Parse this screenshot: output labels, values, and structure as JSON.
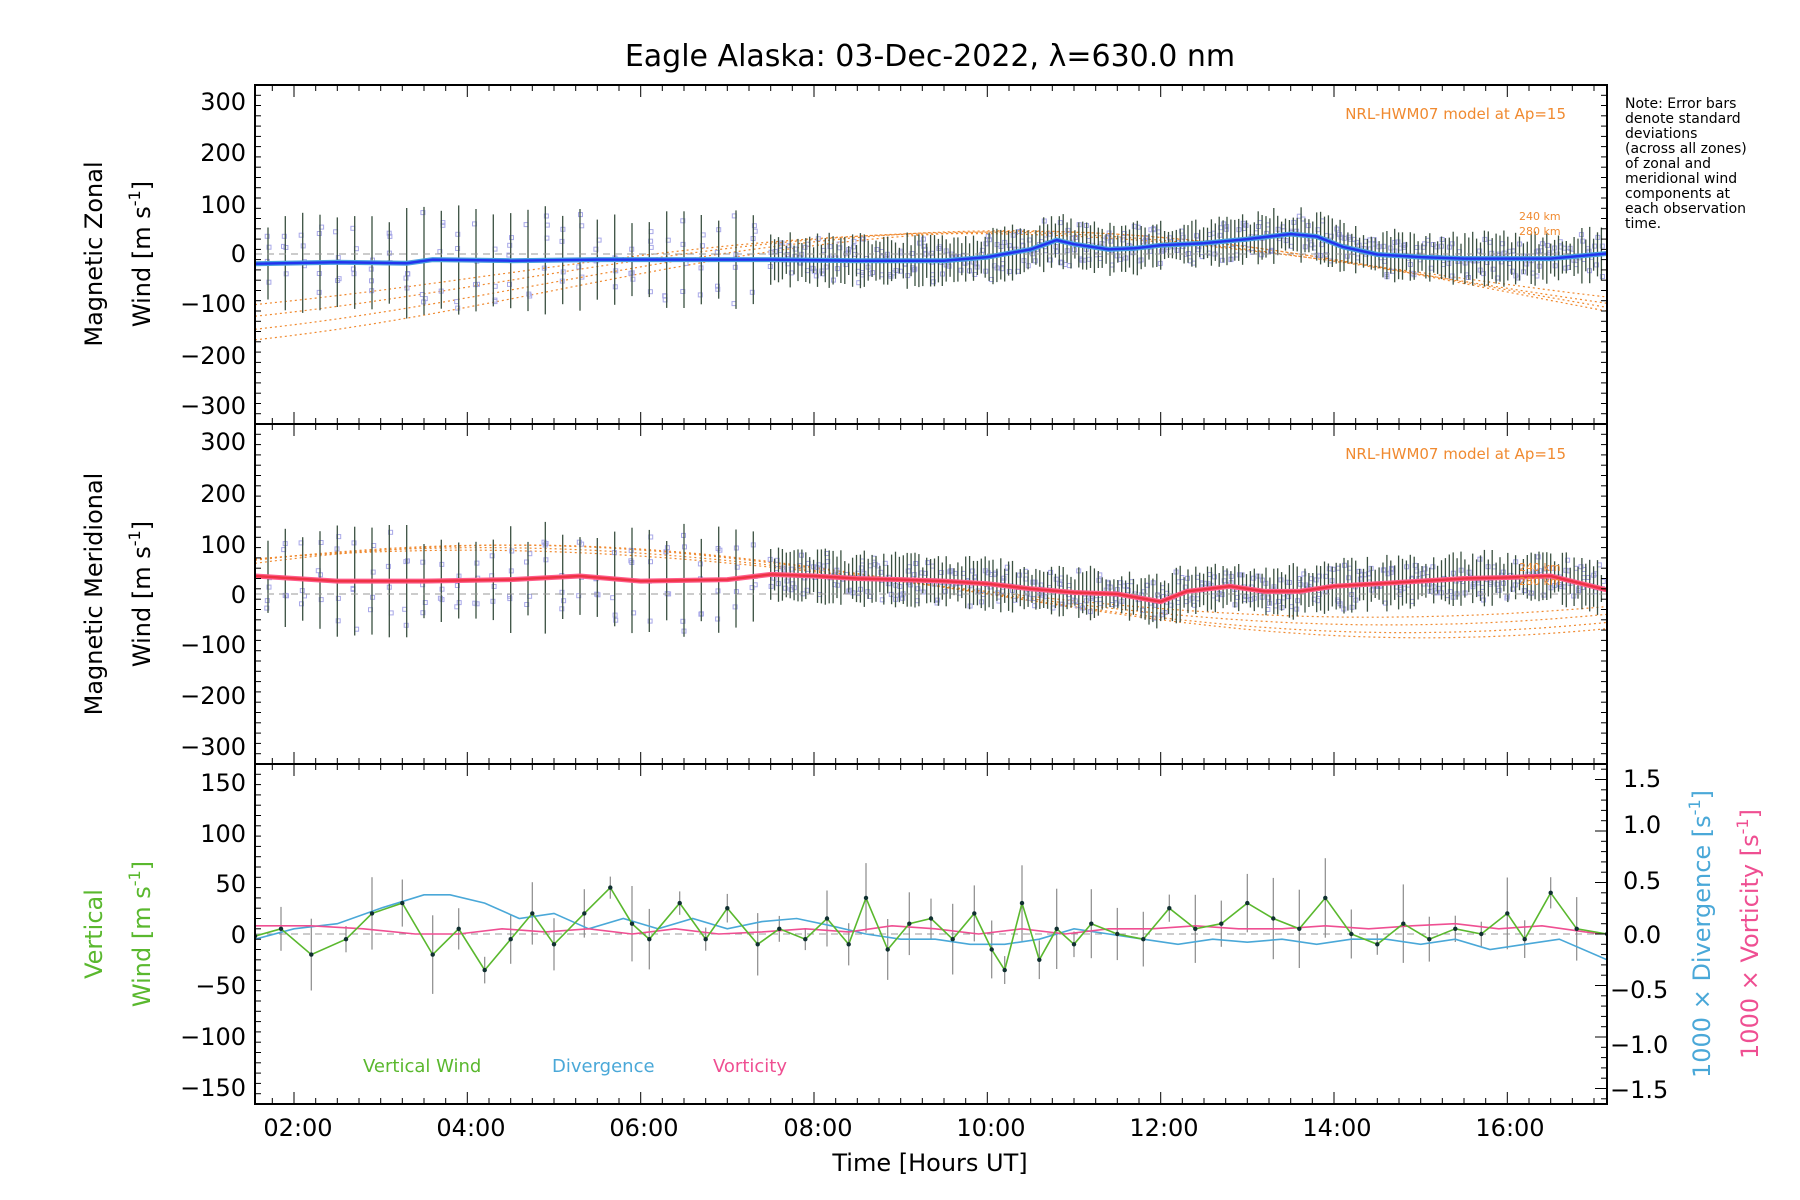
{
  "title": "Eagle Alaska: 03-Dec-2022, λ=630.0 nm",
  "note_lines": [
    "Note: Error bars",
    "denote standard",
    "deviations",
    "(across all zones)",
    "of zonal and",
    "meridional wind",
    "components at",
    "each observation",
    "time."
  ],
  "xlabel": "Time [Hours UT]",
  "x_ticks": [
    "02:00",
    "04:00",
    "06:00",
    "08:00",
    "10:00",
    "12:00",
    "14:00",
    "16:00"
  ],
  "panels": {
    "zonal": {
      "ylabel_line1": "Magnetic Zonal",
      "ylabel_line2": "Wind [m s",
      "ylabel_sup": "-1",
      "ylabel_close": "]",
      "model_label": "NRL-HWM07 model at Ap=15",
      "alt_label_a": "240 km",
      "alt_label_b": "280 km",
      "y_ticks": [
        "300",
        "200",
        "100",
        "0",
        "−100",
        "−200",
        "−300"
      ]
    },
    "meridional": {
      "ylabel_line1": "Magnetic Meridional",
      "ylabel_line2": "Wind [m s",
      "ylabel_sup": "-1",
      "ylabel_close": "]",
      "model_label": "NRL-HWM07 model at Ap=15",
      "alt_label_a": "240 km",
      "alt_label_b": "280 km",
      "y_ticks": [
        "300",
        "200",
        "100",
        "0",
        "−100",
        "−200",
        "−300"
      ]
    },
    "vertical": {
      "ylabel_line1": "Vertical",
      "ylabel_line2": "Wind [m s",
      "ylabel_sup": "-1",
      "ylabel_close": "]",
      "y_ticks": [
        "150",
        "100",
        "50",
        "0",
        "−50",
        "−100",
        "−150"
      ],
      "right_ticks": [
        "1.5",
        "1.0",
        "0.5",
        "0.0",
        "−0.5",
        "−1.0",
        "−1.5"
      ],
      "right_label_div": "1000 × Divergence [s",
      "right_label_vor": "1000 × Vorticity [s",
      "right_label_sup": "-1",
      "right_label_close": "]",
      "legend": [
        "Vertical Wind",
        "Divergence",
        "Vorticity"
      ]
    }
  },
  "colors": {
    "zonal_line": "#2233ee",
    "zonal_smooth": "#4aa0e0",
    "meridional_line": "#ee3344",
    "meridional_smooth": "#ff5c8a",
    "model": "#f08a30",
    "scatter": "#a8a8e8",
    "error_bar": "#3a5040",
    "vertical": "#5ab82e",
    "divergence": "#4aa8d8",
    "vorticity": "#ef4f92",
    "grey_err": "#8a8a8a"
  },
  "chart_data": [
    {
      "type": "line",
      "panel": "zonal",
      "xlim": [
        1.55,
        17.15
      ],
      "ylim": [
        -330,
        330
      ],
      "x_unit": "hours UT",
      "series": [
        {
          "x": [
            1.55,
            2.5,
            3.3,
            3.6,
            4.5,
            5.5,
            6.5,
            7.5,
            8.5,
            9.5,
            10.0,
            10.5,
            10.8,
            11.0,
            11.4,
            11.7,
            12.0,
            12.5,
            13.0,
            13.5,
            13.8,
            14.1,
            14.5,
            15.0,
            15.5,
            16.0,
            16.5,
            17.15
          ],
          "values": [
            -18,
            -15,
            -17,
            -10,
            -12,
            -10,
            -10,
            -10,
            -12,
            -12,
            -5,
            10,
            28,
            20,
            10,
            12,
            18,
            22,
            30,
            40,
            35,
            15,
            0,
            -5,
            -8,
            -8,
            -8,
            2
          ]
        }
      ]
    },
    {
      "type": "line",
      "panel": "meridional",
      "xlim": [
        1.55,
        17.15
      ],
      "ylim": [
        -330,
        330
      ],
      "x_unit": "hours UT",
      "series": [
        {
          "x": [
            1.55,
            2.5,
            3.5,
            4.5,
            5.3,
            6.0,
            7.0,
            7.5,
            8.0,
            8.5,
            9.0,
            9.5,
            10.0,
            10.5,
            11.0,
            11.5,
            12.0,
            12.3,
            12.8,
            13.2,
            13.6,
            14.0,
            14.5,
            15.0,
            15.5,
            16.0,
            16.5,
            17.15
          ],
          "values": [
            35,
            25,
            25,
            28,
            35,
            25,
            28,
            38,
            35,
            30,
            28,
            25,
            20,
            10,
            3,
            0,
            -15,
            5,
            15,
            5,
            5,
            15,
            20,
            25,
            30,
            32,
            35,
            8
          ]
        }
      ]
    },
    {
      "type": "line",
      "panel": "vertical",
      "xlim": [
        1.55,
        17.15
      ],
      "ylim": [
        -165,
        165
      ],
      "right_ylim": [
        -1.65,
        1.65
      ],
      "series": [
        {
          "name": "Vertical Wind",
          "x": [
            1.55,
            1.85,
            2.2,
            2.6,
            2.9,
            3.25,
            3.6,
            3.9,
            4.2,
            4.5,
            4.75,
            5.0,
            5.35,
            5.65,
            5.9,
            6.1,
            6.45,
            6.75,
            7.0,
            7.35,
            7.6,
            7.9,
            8.15,
            8.4,
            8.6,
            8.85,
            9.1,
            9.35,
            9.6,
            9.85,
            10.05,
            10.2,
            10.4,
            10.6,
            10.8,
            11.0,
            11.2,
            11.5,
            11.8,
            12.1,
            12.4,
            12.7,
            13.0,
            13.3,
            13.6,
            13.9,
            14.2,
            14.5,
            14.8,
            15.1,
            15.4,
            15.7,
            16.0,
            16.2,
            16.5,
            16.8,
            17.15
          ],
          "values": [
            -2,
            5,
            -20,
            -5,
            20,
            30,
            -20,
            5,
            -35,
            -5,
            20,
            -10,
            20,
            45,
            10,
            -5,
            30,
            -5,
            25,
            -10,
            5,
            -5,
            15,
            -10,
            35,
            -15,
            10,
            15,
            -5,
            20,
            -15,
            -35,
            30,
            -25,
            5,
            -10,
            10,
            0,
            -5,
            25,
            5,
            10,
            30,
            15,
            5,
            35,
            0,
            -10,
            10,
            -5,
            5,
            0,
            20,
            -5,
            40,
            5,
            0
          ]
        },
        {
          "name": "Divergence",
          "x": [
            1.55,
            2.0,
            2.5,
            3.0,
            3.5,
            3.8,
            4.2,
            4.6,
            5.0,
            5.4,
            5.8,
            6.2,
            6.6,
            7.0,
            7.4,
            7.8,
            8.2,
            8.6,
            9.0,
            9.4,
            9.8,
            10.2,
            10.6,
            11.0,
            11.4,
            11.8,
            12.2,
            12.6,
            13.0,
            13.4,
            13.8,
            14.2,
            14.6,
            15.0,
            15.4,
            15.8,
            16.2,
            16.6,
            17.15
          ],
          "values": [
            -0.05,
            0.05,
            0.1,
            0.25,
            0.38,
            0.38,
            0.3,
            0.15,
            0.2,
            0.05,
            0.15,
            0.05,
            0.15,
            0.05,
            0.12,
            0.15,
            0.08,
            0.0,
            -0.05,
            -0.05,
            -0.1,
            -0.1,
            -0.05,
            0.05,
            0.0,
            -0.05,
            -0.1,
            -0.05,
            -0.08,
            -0.05,
            -0.1,
            -0.05,
            -0.05,
            -0.1,
            -0.05,
            -0.15,
            -0.1,
            -0.05,
            -0.25
          ]
        },
        {
          "name": "Vorticity",
          "x": [
            1.55,
            2.2,
            2.8,
            3.4,
            3.9,
            4.4,
            4.9,
            5.4,
            5.9,
            6.4,
            6.9,
            7.4,
            7.9,
            8.4,
            8.9,
            9.4,
            9.9,
            10.4,
            10.9,
            11.4,
            11.9,
            12.4,
            12.9,
            13.4,
            13.9,
            14.4,
            14.9,
            15.4,
            15.9,
            16.4,
            16.9,
            17.15
          ],
          "values": [
            0.08,
            0.08,
            0.05,
            0.0,
            0.0,
            0.05,
            0.02,
            0.05,
            0.0,
            0.05,
            0.0,
            0.02,
            0.05,
            0.02,
            0.08,
            0.05,
            0.0,
            0.05,
            0.0,
            0.05,
            0.05,
            0.08,
            0.05,
            0.05,
            0.08,
            0.05,
            0.08,
            0.1,
            0.05,
            0.08,
            0.02,
            0.0
          ]
        }
      ]
    }
  ]
}
